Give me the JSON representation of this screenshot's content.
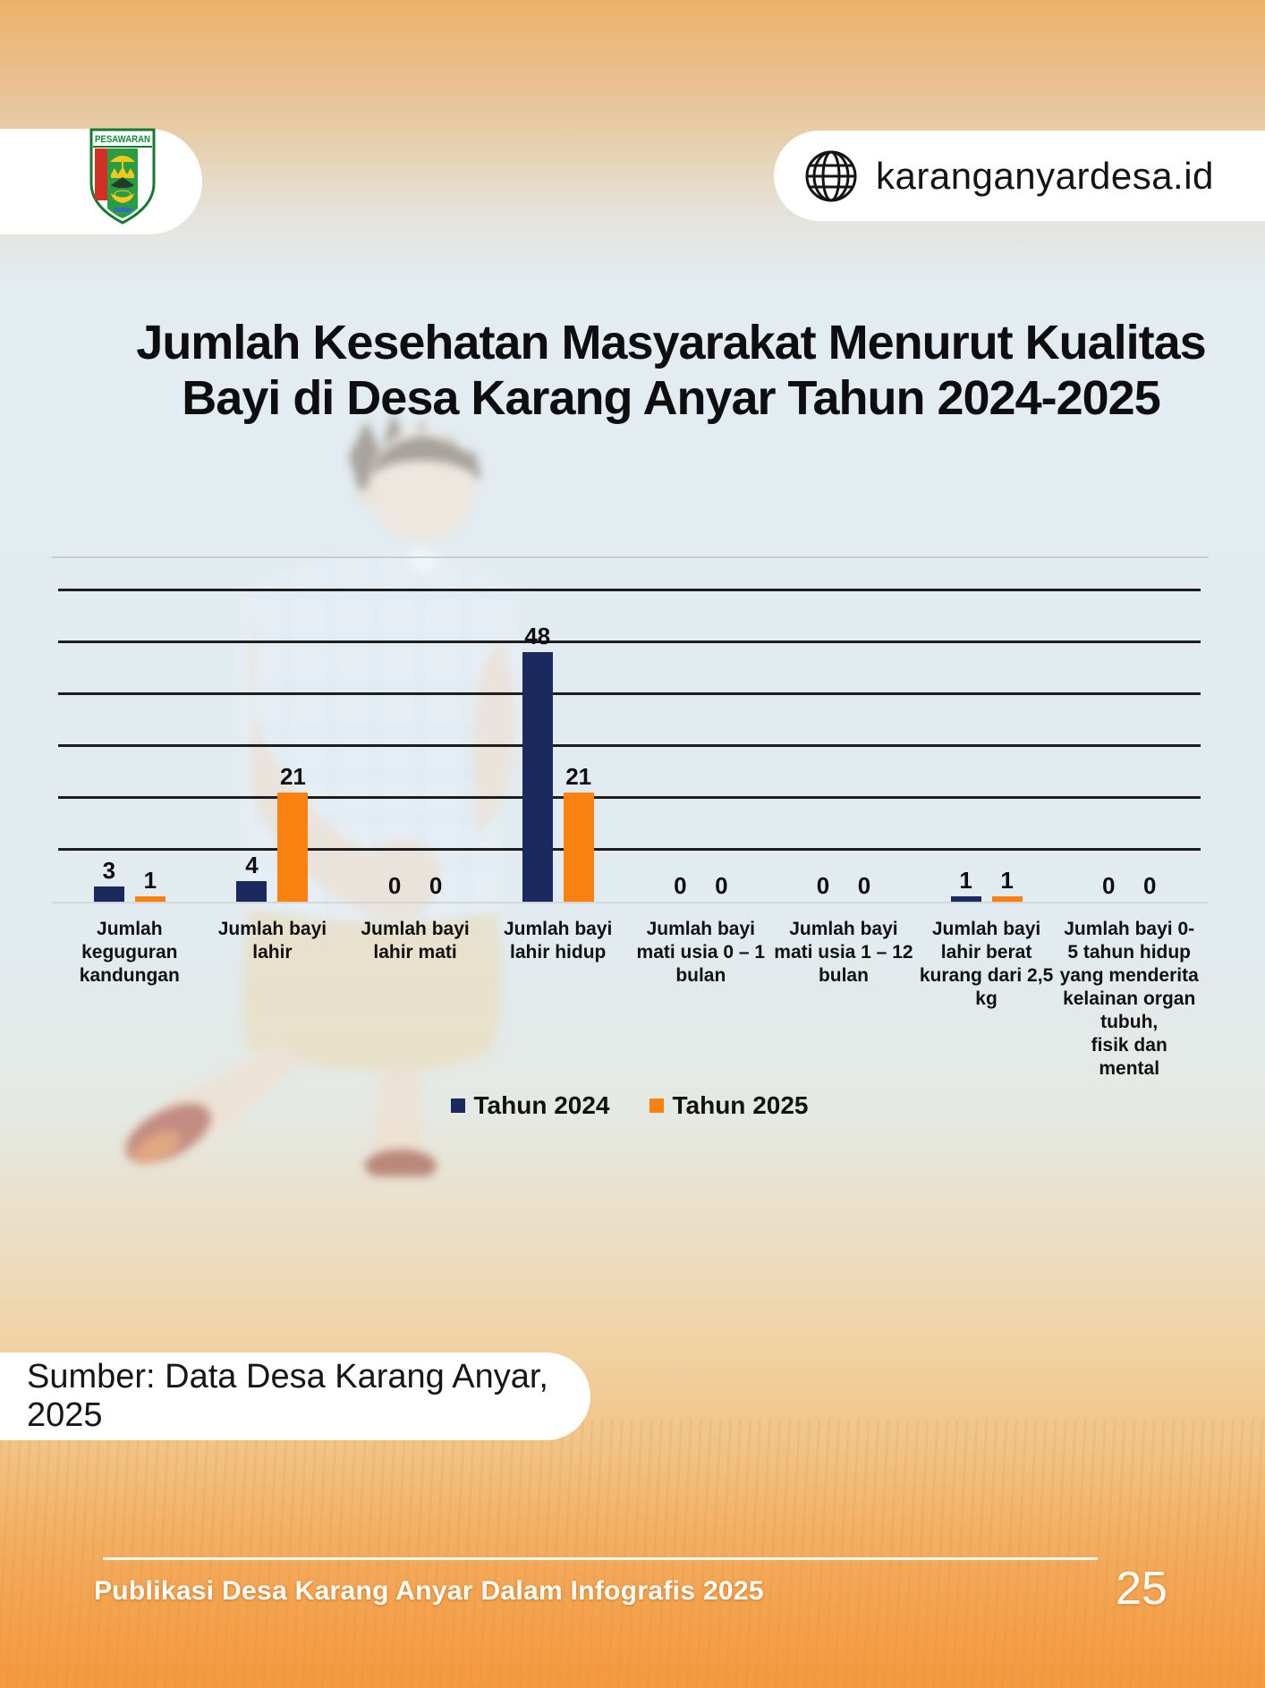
{
  "header": {
    "region_name": "PESAWARAN",
    "website": "karanganyardesa.id"
  },
  "title": {
    "line1": "Jumlah Kesehatan Masyarakat Menurut Kualitas",
    "line2": "Bayi di Desa Karang Anyar Tahun 2024-2025"
  },
  "chart_data": {
    "type": "bar",
    "title": "",
    "xlabel": "",
    "ylabel": "",
    "categories": [
      "Jumlah keguguran kandungan",
      "Jumlah bayi lahir",
      "Jumlah bayi lahir mati",
      "Jumlah bayi lahir hidup",
      "Jumlah bayi mati usia 0 – 1 bulan",
      "Jumlah bayi mati usia 1 – 12 bulan",
      "Jumlah bayi lahir berat kurang dari 2,5 kg",
      "Jumlah bayi 0-5 tahun hidup yang menderita kelainan organ tubuh, fisik dan mental"
    ],
    "category_label_lines": [
      [
        "Jumlah",
        "keguguran",
        "kandungan"
      ],
      [
        "Jumlah bayi",
        "lahir"
      ],
      [
        "Jumlah bayi",
        "lahir mati"
      ],
      [
        "Jumlah bayi",
        "lahir hidup"
      ],
      [
        "Jumlah bayi",
        "mati usia 0 – 1",
        "bulan"
      ],
      [
        "Jumlah bayi",
        "mati usia 1 – 12",
        "bulan"
      ],
      [
        "Jumlah bayi",
        "lahir berat",
        "kurang dari 2,5",
        "kg"
      ],
      [
        "Jumlah bayi 0-",
        "5 tahun hidup",
        "yang menderita",
        "kelainan organ",
        "tubuh,",
        "fisik dan",
        "mental"
      ]
    ],
    "series": [
      {
        "name": "Tahun 2024",
        "color": "#1b2a5e",
        "values": [
          3,
          4,
          0,
          48,
          0,
          0,
          1,
          0
        ]
      },
      {
        "name": "Tahun 2025",
        "color": "#f8810f",
        "values": [
          1,
          21,
          0,
          21,
          0,
          0,
          1,
          0
        ]
      }
    ],
    "ylim": [
      0,
      60
    ],
    "gridline_values": [
      10,
      20,
      30,
      40,
      50,
      60
    ],
    "grid": true,
    "legend_position": "bottom"
  },
  "source": {
    "label": "Sumber: Data Desa Karang Anyar, 2025"
  },
  "footer": {
    "text": "Publikasi Desa Karang Anyar Dalam Infografis 2025",
    "page_number": "25"
  },
  "colors": {
    "series_2024": "#1b2a5e",
    "series_2025": "#f8810f",
    "page_top_orange": "#edb269",
    "page_bottom_orange": "#f4993e",
    "text_dark": "#0e0e10",
    "footer_text": "#ffffff"
  }
}
